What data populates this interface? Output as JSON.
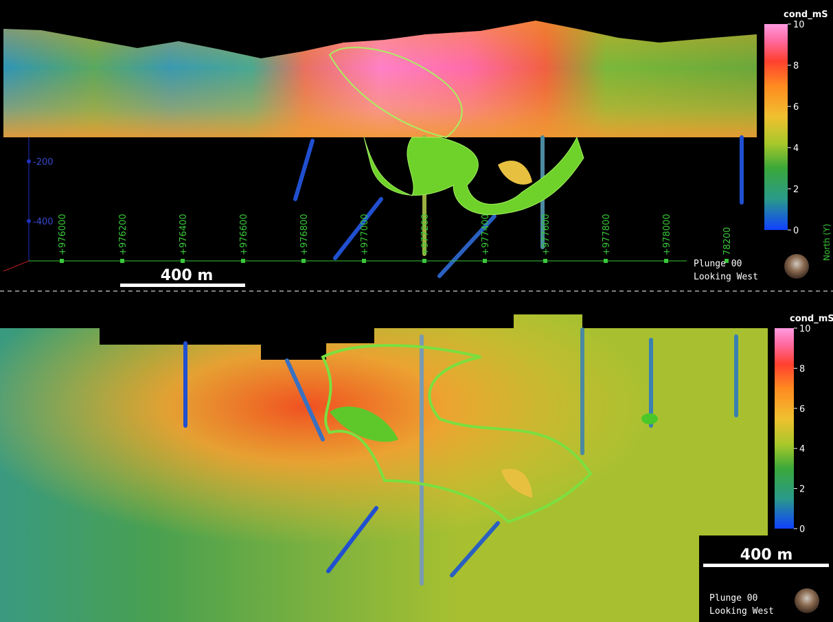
{
  "top_view": {
    "colorbar": {
      "title": "cond_mS",
      "ticks": [
        0,
        2,
        4,
        6,
        8,
        10
      ]
    },
    "elevation_labels": [
      "-200",
      "-400"
    ],
    "northing_labels": [
      "+976000",
      "+976200",
      "+976400",
      "+976600",
      "+976800",
      "+977000",
      "+977200",
      "+977400",
      "+977600",
      "+977800",
      "+978000",
      "78200"
    ],
    "axis_label": "North (Y)",
    "scale_bar": "400 m",
    "plunge": "Plunge 00",
    "looking": "Looking West"
  },
  "bottom_view": {
    "colorbar": {
      "title": "cond_mS",
      "ticks": [
        0,
        2,
        4,
        6,
        8,
        10
      ]
    },
    "scale_bar": "400 m",
    "plunge": "Plunge 00",
    "looking": "Looking West"
  }
}
